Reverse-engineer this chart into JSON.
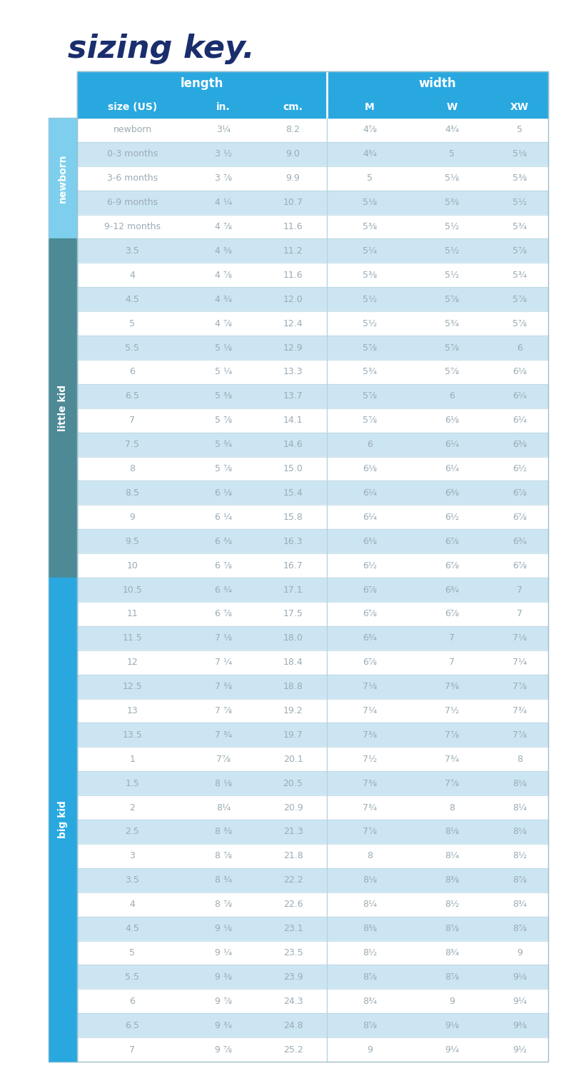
{
  "title": "sizing key.",
  "title_color": "#1a2e6e",
  "bg_color": "#ffffff",
  "header_bg": "#29a8e0",
  "row_colors": [
    "#ffffff",
    "#cce5f3"
  ],
  "sidebar_newborn": "#7dcfed",
  "sidebar_littlekid": "#4d8a96",
  "sidebar_bigkid": "#29a8e0",
  "data_text_color": "#9aabb5",
  "header_text_color": "#ffffff",
  "columns": [
    "size (US)",
    "in.",
    "cm.",
    "M",
    "W",
    "XW"
  ],
  "sections": [
    {
      "label": "newborn",
      "color": "#7dcfed",
      "rows": [
        [
          "newborn",
          "3¼",
          "8.2",
          "4⅞",
          "4¾",
          "5"
        ],
        [
          "0-3 months",
          "3 ½",
          "9.0",
          "4¾",
          "5",
          "5⅛"
        ],
        [
          "3-6 months",
          "3 ⅞",
          "9.9",
          "5",
          "5⅛",
          "5⅜"
        ],
        [
          "6-9 months",
          "4 ¼",
          "10.7",
          "5⅛",
          "5⅜",
          "5½"
        ],
        [
          "9-12 months",
          "4 ⅞",
          "11.6",
          "5⅜",
          "5½",
          "5¾"
        ]
      ]
    },
    {
      "label": "little kid",
      "color": "#4d8a96",
      "rows": [
        [
          "3.5",
          "4 ⅜",
          "11.2",
          "5¼",
          "5½",
          "5⅞"
        ],
        [
          "4",
          "4 ⅞",
          "11.6",
          "5⅜",
          "5½",
          "5¾"
        ],
        [
          "4.5",
          "4 ¾",
          "12.0",
          "5½",
          "5⅞",
          "5⅞"
        ],
        [
          "5",
          "4 ⅞",
          "12.4",
          "5½",
          "5¾",
          "5⅞"
        ],
        [
          "5.5",
          "5 ⅛",
          "12.9",
          "5⅞",
          "5⅞",
          "6"
        ],
        [
          "6",
          "5 ¼",
          "13.3",
          "5¾",
          "5⅞",
          "6⅛"
        ],
        [
          "6.5",
          "5 ⅜",
          "13.7",
          "5⅞",
          "6",
          "6¼"
        ],
        [
          "7",
          "5 ⅞",
          "14.1",
          "5⅞",
          "6⅛",
          "6¼"
        ],
        [
          "7.5",
          "5 ¾",
          "14.6",
          "6",
          "6¼",
          "6⅜"
        ],
        [
          "8",
          "5 ⅞",
          "15.0",
          "6⅛",
          "6¼",
          "6½"
        ],
        [
          "8.5",
          "6 ⅛",
          "15.4",
          "6¼",
          "6⅜",
          "6⅞"
        ],
        [
          "9",
          "6 ¼",
          "15.8",
          "6¼",
          "6½",
          "6⅞"
        ],
        [
          "9.5",
          "6 ⅜",
          "16.3",
          "6⅜",
          "6⅞",
          "6¾"
        ],
        [
          "10",
          "6 ⅞",
          "16.7",
          "6½",
          "6⅞",
          "6⅞"
        ]
      ]
    },
    {
      "label": "big kid",
      "color": "#29a8e0",
      "rows": [
        [
          "10.5",
          "6 ¾",
          "17.1",
          "6⅞",
          "6¾",
          "7"
        ],
        [
          "11",
          "6 ⅞",
          "17.5",
          "6⅞",
          "6⅞",
          "7"
        ],
        [
          "11.5",
          "7 ⅛",
          "18.0",
          "6¾",
          "7",
          "7⅛"
        ],
        [
          "12",
          "7 ¼",
          "18.4",
          "6⅞",
          "7",
          "7¼"
        ],
        [
          "12.5",
          "7 ⅜",
          "18.8",
          "7⅛",
          "7⅜",
          "7⅞"
        ],
        [
          "13",
          "7 ⅞",
          "19.2",
          "7¼",
          "7½",
          "7¾"
        ],
        [
          "13.5",
          "7 ¾",
          "19.7",
          "7⅜",
          "7⅞",
          "7⅞"
        ],
        [
          "1",
          "7⅞",
          "20.1",
          "7½",
          "7¾",
          "8"
        ],
        [
          "1.5",
          "8 ⅛",
          "20.5",
          "7⅜",
          "7⅞",
          "8⅛"
        ],
        [
          "2",
          "8¼",
          "20.9",
          "7¾",
          "8",
          "8¼"
        ],
        [
          "2.5",
          "8 ⅜",
          "21.3",
          "7⅞",
          "8⅛",
          "8⅛"
        ],
        [
          "3",
          "8 ⅞",
          "21.8",
          "8",
          "8¼",
          "8½"
        ],
        [
          "3.5",
          "8 ¾",
          "22.2",
          "8⅛",
          "8⅜",
          "8⅞"
        ],
        [
          "4",
          "8 ⅞",
          "22.6",
          "8¼",
          "8½",
          "8¾"
        ],
        [
          "4.5",
          "9 ⅛",
          "23.1",
          "8⅜",
          "8⅞",
          "8⅞"
        ],
        [
          "5",
          "9 ¼",
          "23.5",
          "8½",
          "8¾",
          "9"
        ],
        [
          "5.5",
          "9 ⅜",
          "23.9",
          "8⅞",
          "8⅞",
          "9⅛"
        ],
        [
          "6",
          "9 ⅞",
          "24.3",
          "8¾",
          "9",
          "9¼"
        ],
        [
          "6.5",
          "9 ¾",
          "24.8",
          "8⅞",
          "9⅛",
          "9⅜"
        ],
        [
          "7",
          "9 ⅞",
          "25.2",
          "9",
          "9¼",
          "9½"
        ]
      ]
    }
  ]
}
